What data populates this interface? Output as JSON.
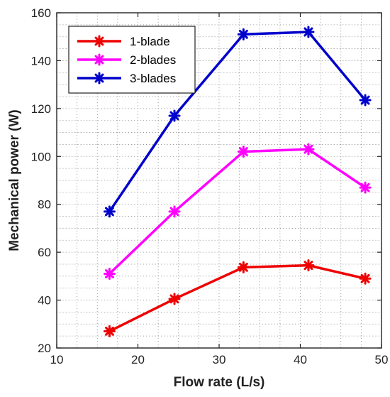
{
  "chart_data": {
    "type": "line",
    "title": "",
    "xlabel": "Flow rate (L/s)",
    "ylabel": "Mechanical power (W)",
    "xlim": [
      10,
      50
    ],
    "ylim": [
      20,
      160
    ],
    "xticks": [
      10,
      20,
      30,
      40,
      50
    ],
    "yticks": [
      20,
      40,
      60,
      80,
      100,
      120,
      140,
      160
    ],
    "grid": true,
    "grid_style": "dotted",
    "legend_position": "top-left",
    "x": [
      16.5,
      24.5,
      33,
      41,
      48
    ],
    "series": [
      {
        "name": "1-blade",
        "color": "#ee0000",
        "marker": "asterisk",
        "values": [
          27,
          40.5,
          53.7,
          54.5,
          49
        ]
      },
      {
        "name": "2-blades",
        "color": "#ff00ff",
        "marker": "asterisk",
        "values": [
          51,
          77,
          102,
          103,
          87
        ]
      },
      {
        "name": "3-blades",
        "color": "#0000cc",
        "marker": "asterisk",
        "values": [
          77,
          117,
          151,
          152,
          123.5
        ]
      }
    ]
  }
}
